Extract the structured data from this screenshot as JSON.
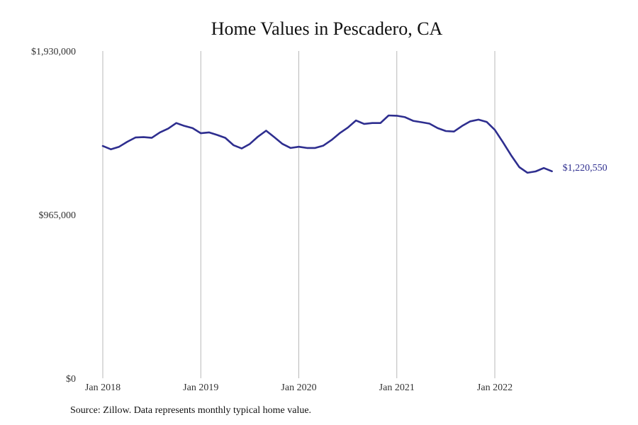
{
  "chart_data": {
    "type": "line",
    "title": "Home Values in Pescadero, CA",
    "xlabel": "",
    "ylabel": "",
    "ylim": [
      0,
      1930000
    ],
    "y_ticks": [
      {
        "value": 0,
        "label": "$0"
      },
      {
        "value": 965000,
        "label": "$965,000"
      },
      {
        "value": 1930000,
        "label": "$1,930,000"
      }
    ],
    "x_ticks": [
      {
        "value": "2018-01",
        "label": "Jan 2018"
      },
      {
        "value": "2019-01",
        "label": "Jan 2019"
      },
      {
        "value": "2020-01",
        "label": "Jan 2020"
      },
      {
        "value": "2021-01",
        "label": "Jan 2021"
      },
      {
        "value": "2022-01",
        "label": "Jan 2022"
      }
    ],
    "grid": "vertical",
    "legend": "none",
    "end_label": "$1,220,550",
    "series": [
      {
        "color": "#2e2e8f",
        "x": [
          "2018-01",
          "2018-02",
          "2018-03",
          "2018-04",
          "2018-05",
          "2018-06",
          "2018-07",
          "2018-08",
          "2018-09",
          "2018-10",
          "2018-11",
          "2018-12",
          "2019-01",
          "2019-02",
          "2019-03",
          "2019-04",
          "2019-05",
          "2019-06",
          "2019-07",
          "2019-08",
          "2019-09",
          "2019-10",
          "2019-11",
          "2019-12",
          "2020-01",
          "2020-02",
          "2020-03",
          "2020-04",
          "2020-05",
          "2020-06",
          "2020-07",
          "2020-08",
          "2020-09",
          "2020-10",
          "2020-11",
          "2020-12",
          "2021-01",
          "2021-02",
          "2021-03",
          "2021-04",
          "2021-05",
          "2021-06",
          "2021-07",
          "2021-08",
          "2021-09",
          "2021-10",
          "2021-11",
          "2021-12",
          "2022-01",
          "2022-02",
          "2022-03",
          "2022-04",
          "2022-05",
          "2022-06",
          "2022-07",
          "2022-08"
        ],
        "values": [
          1370000,
          1350000,
          1365000,
          1395000,
          1420000,
          1422000,
          1418000,
          1450000,
          1472000,
          1505000,
          1488000,
          1475000,
          1445000,
          1450000,
          1435000,
          1418000,
          1375000,
          1355000,
          1382000,
          1425000,
          1460000,
          1422000,
          1382000,
          1358000,
          1365000,
          1358000,
          1358000,
          1372000,
          1405000,
          1445000,
          1478000,
          1520000,
          1500000,
          1505000,
          1505000,
          1550000,
          1548000,
          1540000,
          1518000,
          1510000,
          1502000,
          1475000,
          1458000,
          1455000,
          1488000,
          1515000,
          1525000,
          1512000,
          1465000,
          1392000,
          1315000,
          1245000,
          1212000,
          1220000,
          1240000,
          1220550
        ]
      }
    ]
  },
  "footer": {
    "source": "Source: Zillow. Data represents monthly typical home value."
  }
}
